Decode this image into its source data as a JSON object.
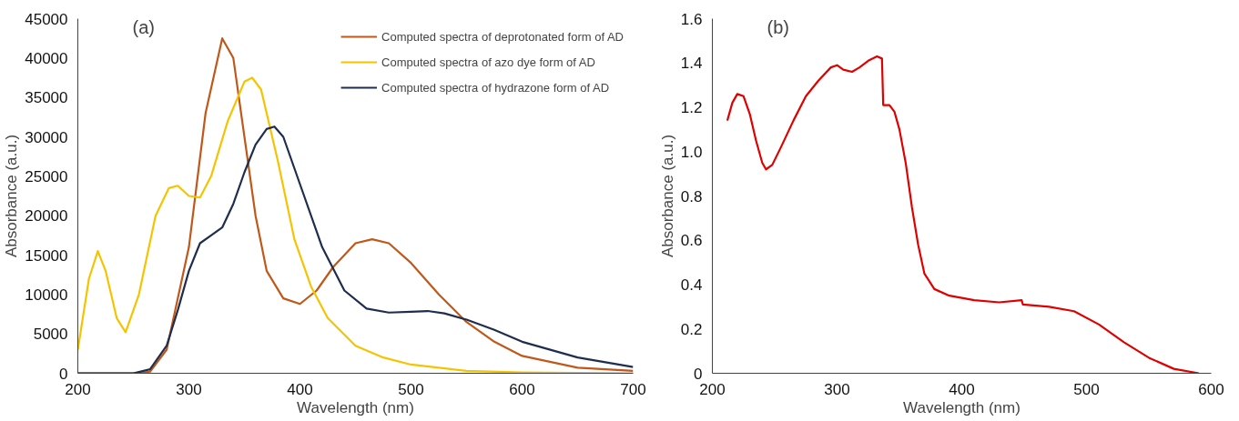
{
  "chart_data": [
    {
      "type": "line",
      "annotations": [
        "(a)"
      ],
      "xlabel": "Wavelength (nm)",
      "ylabel": "Absorbance (a.u.)",
      "xlim": [
        200,
        700
      ],
      "xticks": [
        200,
        300,
        400,
        500,
        600,
        700
      ],
      "ylim": [
        0,
        45000
      ],
      "yticks": [
        0,
        5000,
        10000,
        15000,
        20000,
        25000,
        30000,
        35000,
        40000,
        45000
      ],
      "grid": false,
      "legend": "top right",
      "marker": "none",
      "line_style": "solid",
      "series": [
        {
          "name": "Computed spectra of deprotonated form of AD",
          "color": "#c0581a",
          "x": [
            200,
            250,
            265,
            280,
            300,
            315,
            330,
            340,
            350,
            360,
            370,
            385,
            400,
            415,
            430,
            450,
            465,
            480,
            500,
            525,
            550,
            575,
            600,
            650,
            700
          ],
          "values": [
            0,
            0,
            200,
            3000,
            16000,
            33000,
            42500,
            40000,
            30000,
            20000,
            13000,
            9500,
            8800,
            10500,
            13500,
            16500,
            17000,
            16500,
            14000,
            10000,
            6500,
            4000,
            2200,
            700,
            300
          ]
        },
        {
          "name": "Computed spectra of azo dye form of AD",
          "color": "#f5c400",
          "x": [
            200,
            210,
            218,
            225,
            235,
            243,
            255,
            270,
            282,
            290,
            300,
            310,
            320,
            335,
            350,
            357,
            365,
            380,
            395,
            410,
            425,
            450,
            475,
            500,
            550,
            600,
            700
          ],
          "values": [
            3000,
            12000,
            15500,
            13000,
            7000,
            5200,
            10000,
            20000,
            23500,
            23800,
            22500,
            22300,
            25000,
            32000,
            37000,
            37500,
            36000,
            27000,
            17000,
            11000,
            7000,
            3500,
            2000,
            1100,
            300,
            100,
            0
          ]
        },
        {
          "name": "Computed spectra of hydrazone form of AD",
          "color": "#1f2d4f",
          "x": [
            200,
            250,
            265,
            280,
            290,
            300,
            310,
            320,
            330,
            340,
            350,
            360,
            370,
            377,
            385,
            400,
            420,
            440,
            460,
            480,
            500,
            515,
            530,
            550,
            575,
            600,
            650,
            700
          ],
          "values": [
            0,
            0,
            500,
            3500,
            8000,
            13000,
            16500,
            17500,
            18500,
            21500,
            25500,
            29000,
            31000,
            31300,
            30000,
            24000,
            16000,
            10500,
            8200,
            7700,
            7800,
            7900,
            7600,
            6800,
            5500,
            4000,
            2000,
            800
          ]
        }
      ]
    },
    {
      "type": "line",
      "annotations": [
        "(b)"
      ],
      "xlabel": "Wavelength (nm)",
      "ylabel": "Absorbance (a.u.)",
      "xlim": [
        200,
        600
      ],
      "xticks": [
        200,
        300,
        400,
        500,
        600
      ],
      "ylim": [
        0,
        1.6
      ],
      "yticks": [
        0,
        0.2,
        0.4,
        0.6,
        0.8,
        {
          "value": 1.0,
          "label": "1.0"
        },
        1.2,
        1.4,
        1.6
      ],
      "grid": false,
      "legend": false,
      "marker": "none",
      "line_style": "solid",
      "series": [
        {
          "color": "#e00000",
          "x": [
            212,
            216,
            220,
            225,
            230,
            235,
            240,
            243,
            248,
            255,
            265,
            275,
            285,
            295,
            300,
            305,
            312,
            318,
            325,
            332,
            336,
            337,
            342,
            346,
            350,
            355,
            360,
            365,
            370,
            378,
            390,
            410,
            430,
            448,
            449,
            470,
            490,
            510,
            530,
            550,
            570,
            590
          ],
          "values": [
            1.14,
            1.22,
            1.26,
            1.25,
            1.17,
            1.05,
            0.95,
            0.92,
            0.94,
            1.02,
            1.14,
            1.25,
            1.32,
            1.38,
            1.39,
            1.37,
            1.36,
            1.38,
            1.41,
            1.43,
            1.42,
            1.21,
            1.21,
            1.18,
            1.1,
            0.95,
            0.75,
            0.58,
            0.45,
            0.38,
            0.35,
            0.33,
            0.32,
            0.33,
            0.31,
            0.3,
            0.28,
            0.22,
            0.14,
            0.07,
            0.02,
            0.0
          ]
        }
      ]
    }
  ]
}
